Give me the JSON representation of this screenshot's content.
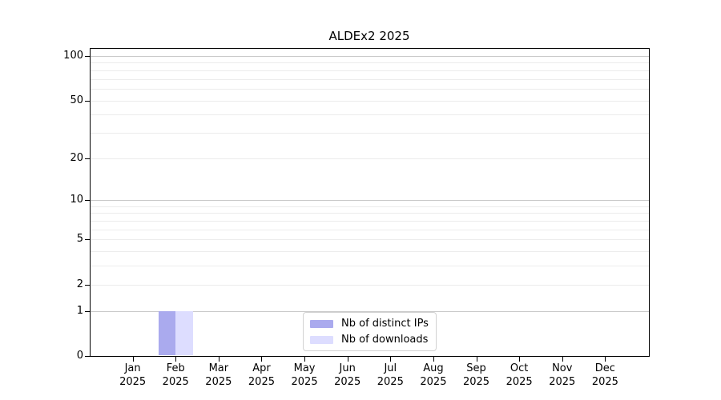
{
  "chart_data": {
    "type": "bar",
    "title": "ALDEx2 2025",
    "x": {
      "categories": [
        "Jan",
        "Feb",
        "Mar",
        "Apr",
        "May",
        "Jun",
        "Jul",
        "Aug",
        "Sep",
        "Oct",
        "Nov",
        "Dec"
      ],
      "year": "2025"
    },
    "series": [
      {
        "name": "Nb of distinct IPs",
        "color": "#aaaaee",
        "values": [
          0,
          1,
          0,
          0,
          0,
          0,
          0,
          0,
          0,
          0,
          0,
          0
        ]
      },
      {
        "name": "Nb of downloads",
        "color": "#ddddff",
        "values": [
          0,
          1,
          0,
          0,
          0,
          0,
          0,
          0,
          0,
          0,
          0,
          0
        ]
      }
    ],
    "y_axis": {
      "scale": "log10(1+x)",
      "ticks": [
        0,
        1,
        2,
        5,
        10,
        20,
        50,
        100
      ],
      "ylim": [
        0,
        113
      ],
      "minor_gridlines": [
        2,
        3,
        4,
        5,
        6,
        7,
        8,
        9,
        20,
        30,
        40,
        50,
        60,
        70,
        80,
        90
      ],
      "major_gridlines": [
        1,
        10,
        100
      ]
    },
    "legend": {
      "position": "lower-center-inside",
      "entries": [
        "Nb of distinct IPs",
        "Nb of downloads"
      ]
    },
    "colors": {
      "grid_minor": "#ececec",
      "grid_major": "#c9c9c9",
      "axis": "#000000",
      "legend_border": "#d2d2d2",
      "background": "#ffffff"
    }
  }
}
